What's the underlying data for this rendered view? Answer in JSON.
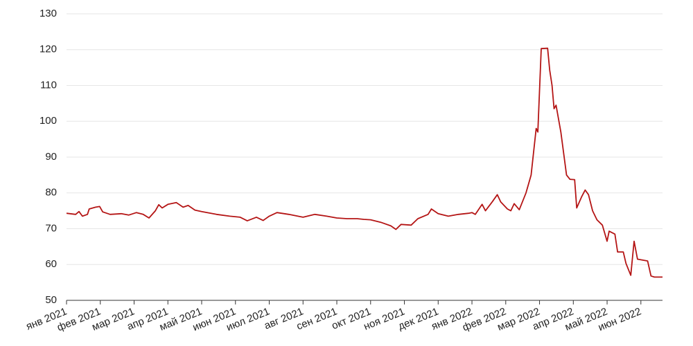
{
  "chart_data": {
    "type": "line",
    "x": [
      0,
      0.27,
      0.37,
      0.47,
      0.62,
      0.67,
      0.86,
      0.98,
      1.07,
      1.29,
      1.62,
      1.84,
      2.07,
      2.27,
      2.44,
      2.63,
      2.73,
      2.83,
      3.0,
      3.25,
      3.45,
      3.6,
      3.8,
      4.0,
      4.44,
      4.83,
      5.14,
      5.35,
      5.62,
      5.82,
      6.0,
      6.23,
      6.58,
      7.0,
      7.35,
      7.7,
      8.0,
      8.3,
      8.6,
      8.8,
      9.0,
      9.3,
      9.6,
      9.75,
      9.9,
      10.2,
      10.4,
      10.7,
      10.8,
      11.0,
      11.3,
      11.6,
      11.9,
      12.0,
      12.1,
      12.3,
      12.4,
      12.6,
      12.75,
      12.85,
      13.05,
      13.15,
      13.25,
      13.4,
      13.6,
      13.75,
      13.9,
      13.95,
      14.05,
      14.24,
      14.3,
      14.37,
      14.43,
      14.49,
      14.63,
      14.8,
      14.9,
      15.04,
      15.1,
      15.25,
      15.35,
      15.45,
      15.57,
      15.7,
      15.86,
      16.0,
      16.06,
      16.23,
      16.31,
      16.48,
      16.56,
      16.7,
      16.8,
      16.9,
      17.2,
      17.3,
      17.4,
      17.64
    ],
    "values": [
      74.3,
      74.0,
      74.8,
      73.5,
      74.0,
      75.5,
      76.0,
      76.2,
      74.7,
      74.0,
      74.2,
      73.8,
      74.5,
      74.0,
      73.0,
      75.0,
      76.7,
      75.8,
      76.8,
      77.3,
      76.0,
      76.5,
      75.2,
      74.8,
      74.0,
      73.5,
      73.2,
      72.2,
      73.2,
      72.3,
      73.5,
      74.5,
      74.0,
      73.2,
      74.0,
      73.5,
      73.0,
      72.8,
      72.8,
      72.6,
      72.5,
      71.8,
      70.8,
      69.8,
      71.2,
      71.0,
      72.8,
      74.0,
      75.5,
      74.2,
      73.5,
      74.0,
      74.3,
      74.5,
      74.0,
      76.8,
      75.0,
      77.5,
      79.5,
      77.5,
      75.5,
      75.0,
      77.0,
      75.3,
      80.0,
      85.0,
      98.0,
      97.0,
      120.3,
      120.4,
      114.3,
      110.0,
      103.5,
      104.5,
      97.0,
      85.0,
      83.8,
      83.7,
      75.8,
      79.0,
      80.8,
      79.5,
      75.0,
      72.5,
      71.0,
      66.5,
      69.3,
      68.5,
      63.5,
      63.5,
      60.3,
      57.0,
      66.5,
      61.5,
      61.0,
      56.8,
      56.5,
      56.5
    ],
    "color": "#b41414",
    "xlim": [
      0,
      17.64
    ],
    "xticks": [
      {
        "value": 0,
        "label": "янв 2021"
      },
      {
        "value": 1,
        "label": "фев 2021"
      },
      {
        "value": 2,
        "label": "мар 2021"
      },
      {
        "value": 3,
        "label": "апр 2021"
      },
      {
        "value": 4,
        "label": "май 2021"
      },
      {
        "value": 5,
        "label": "июн 2021"
      },
      {
        "value": 6,
        "label": "июл 2021"
      },
      {
        "value": 7,
        "label": "авг 2021"
      },
      {
        "value": 8,
        "label": "сен 2021"
      },
      {
        "value": 9,
        "label": "окт 2021"
      },
      {
        "value": 10,
        "label": "ноя 2021"
      },
      {
        "value": 11,
        "label": "дек 2021"
      },
      {
        "value": 12,
        "label": "янв 2022"
      },
      {
        "value": 13,
        "label": "фев 2022"
      },
      {
        "value": 14,
        "label": "мар 2022"
      },
      {
        "value": 15,
        "label": "апр 2022"
      },
      {
        "value": 16,
        "label": "май 2022"
      },
      {
        "value": 17,
        "label": "июн 2022"
      }
    ],
    "ylim": [
      50,
      130
    ],
    "yticks": [
      50,
      60,
      70,
      80,
      90,
      100,
      110,
      120,
      130
    ],
    "grid": true
  }
}
